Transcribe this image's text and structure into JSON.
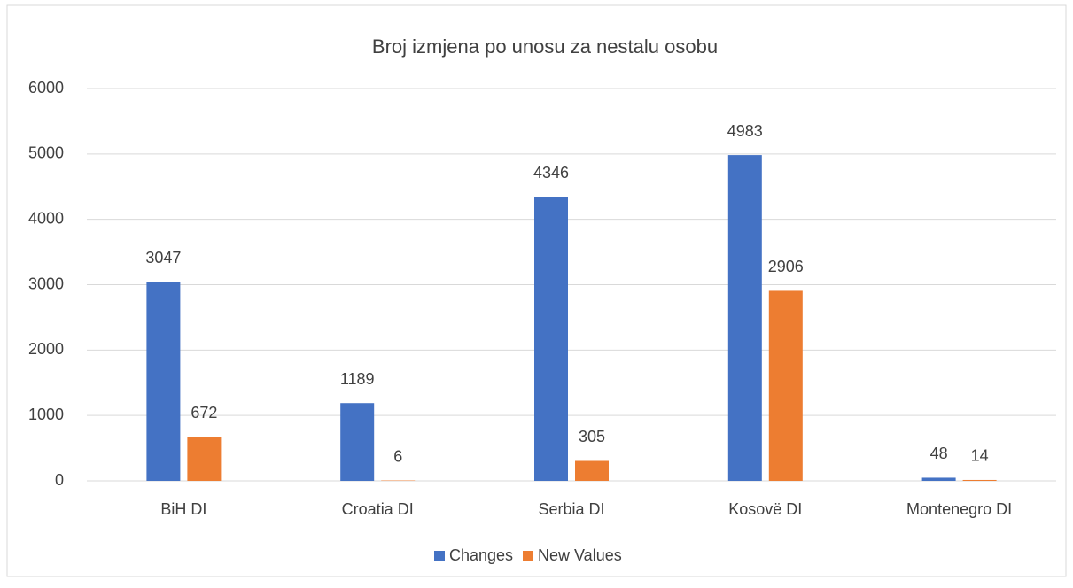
{
  "chart_data": {
    "type": "bar",
    "title": "Broj izmjena po unosu za nestalu osobu",
    "categories": [
      "BiH DI",
      "Croatia DI",
      "Serbia DI",
      "Kosovë DI",
      "Montenegro DI"
    ],
    "series": [
      {
        "name": "Changes",
        "color": "#4472c4",
        "values": [
          3047,
          1189,
          4346,
          4983,
          48
        ]
      },
      {
        "name": "New Values",
        "color": "#ed7d31",
        "values": [
          672,
          6,
          305,
          2906,
          14
        ]
      }
    ],
    "ylim": [
      0,
      6000
    ],
    "yticks": [
      0,
      1000,
      2000,
      3000,
      4000,
      5000,
      6000
    ],
    "grid": true,
    "legend": "bottom"
  }
}
